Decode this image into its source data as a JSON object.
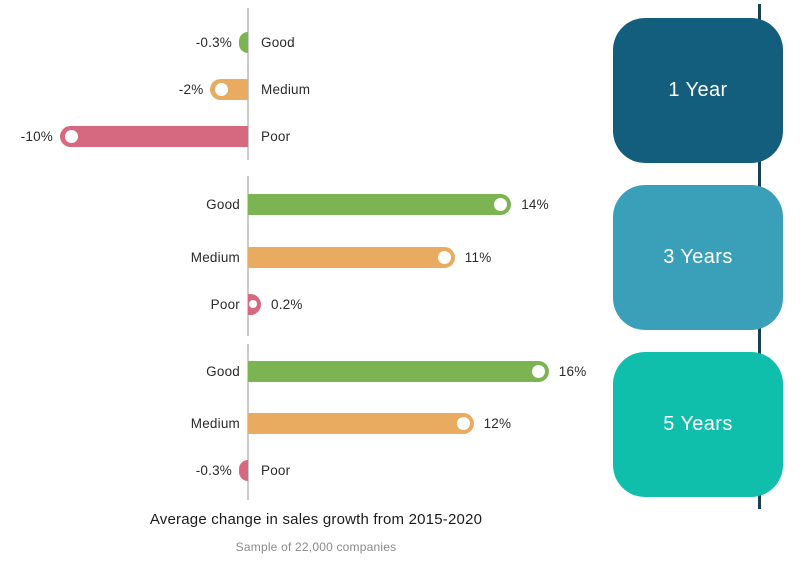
{
  "chart_data": {
    "type": "bar",
    "orientation": "horizontal",
    "title": "Average change in sales growth from 2015-2020",
    "subtitle": "Sample of 22,000 companies",
    "categories": [
      "Good",
      "Medium",
      "Poor"
    ],
    "series": [
      {
        "name": "1 Year",
        "values": [
          -0.3,
          -2,
          -10
        ],
        "labels": [
          "-0.3%",
          "-2%",
          "-10%"
        ]
      },
      {
        "name": "3 Years",
        "values": [
          14,
          11,
          0.2
        ],
        "labels": [
          "14%",
          "11%",
          "0.2%"
        ]
      },
      {
        "name": "5 Years",
        "values": [
          16,
          12,
          -0.3
        ],
        "labels": [
          "16%",
          "12%",
          "-0.3%"
        ]
      }
    ],
    "category_colors": {
      "Good": "#7cb454",
      "Medium": "#e9ab60",
      "Poor": "#d6697f"
    },
    "group_panel_colors": [
      "#135e7c",
      "#3aa0ba",
      "#10bfab"
    ],
    "xlim": [
      -10,
      16
    ],
    "legend_position": "none",
    "grid": false
  },
  "colors": {
    "axis": "#cccccc",
    "timeline": "#173f52",
    "dot": "#ffffff",
    "label_text": "#2b2b2b",
    "subtitle_text": "#8a8a8a"
  }
}
